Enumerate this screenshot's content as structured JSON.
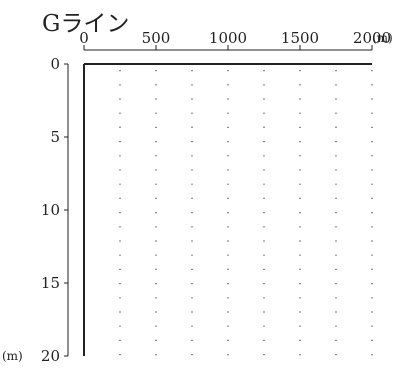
{
  "chart_data": {
    "type": "scatter",
    "title": "Gライン",
    "xlabel": "",
    "ylabel": "",
    "x_unit": "(m)",
    "y_unit": "(m)",
    "x_ticks": [
      0,
      500,
      1000,
      1500,
      2000
    ],
    "x_tick_labels": [
      "0",
      "500",
      "1000",
      "1500",
      "2000"
    ],
    "y_ticks": [
      0,
      5,
      10,
      15,
      20
    ],
    "y_tick_labels": [
      "0",
      "5",
      "10",
      "15",
      "20"
    ],
    "xlim": [
      0,
      2000
    ],
    "ylim": [
      0,
      20
    ],
    "y_inverted": true,
    "grid_x": [
      250,
      500,
      750,
      1000,
      1250,
      1500,
      1750,
      2000
    ],
    "grid_style": "dotted",
    "series": [
      {
        "values": [
          {
            "x": 0,
            "y": 0
          },
          {
            "x": 2000,
            "y": 0
          }
        ]
      }
    ],
    "colors": {
      "ink": "#222222",
      "grid": "#333333"
    }
  }
}
